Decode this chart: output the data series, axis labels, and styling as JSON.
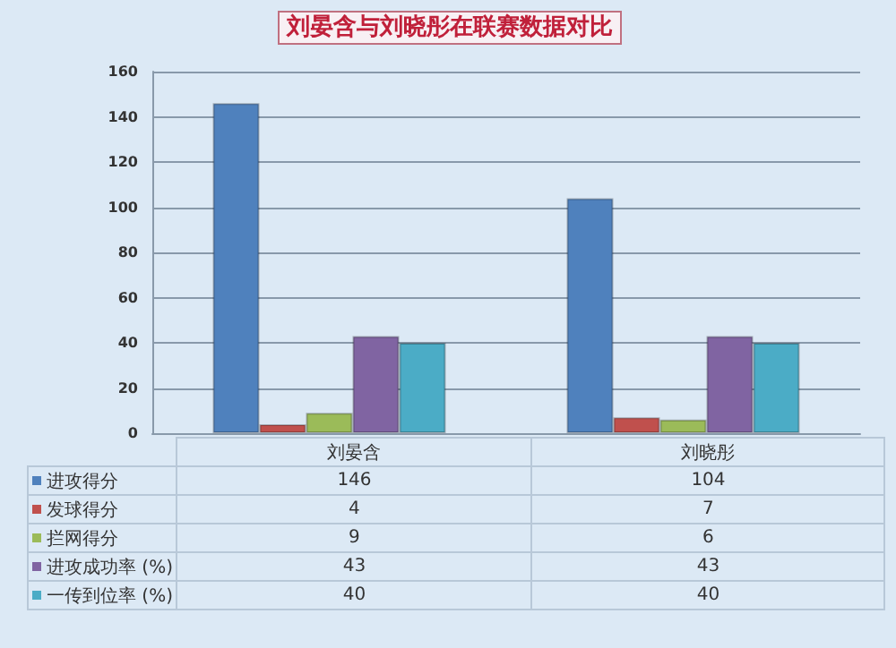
{
  "chart_data": {
    "type": "bar",
    "title": "刘晏含与刘晓彤在联赛数据对比",
    "categories": [
      "刘晏含",
      "刘晓彤"
    ],
    "series": [
      {
        "name": "进攻得分",
        "color": "#4f81bd",
        "values": [
          146,
          104
        ]
      },
      {
        "name": "发球得分",
        "color": "#c0504d",
        "values": [
          4,
          7
        ]
      },
      {
        "name": "拦网得分",
        "color": "#9bbb59",
        "values": [
          9,
          6
        ]
      },
      {
        "name": "进攻成功率 (%)",
        "color": "#8064a2",
        "values": [
          43,
          43
        ]
      },
      {
        "name": "一传到位率 (%)",
        "color": "#4bacc6",
        "values": [
          40,
          40
        ]
      }
    ],
    "ylim": [
      0,
      160
    ],
    "yticks": [
      0,
      20,
      40,
      60,
      80,
      100,
      120,
      140,
      160
    ],
    "grid": "y",
    "legend": "bottom",
    "data_labels": true
  }
}
